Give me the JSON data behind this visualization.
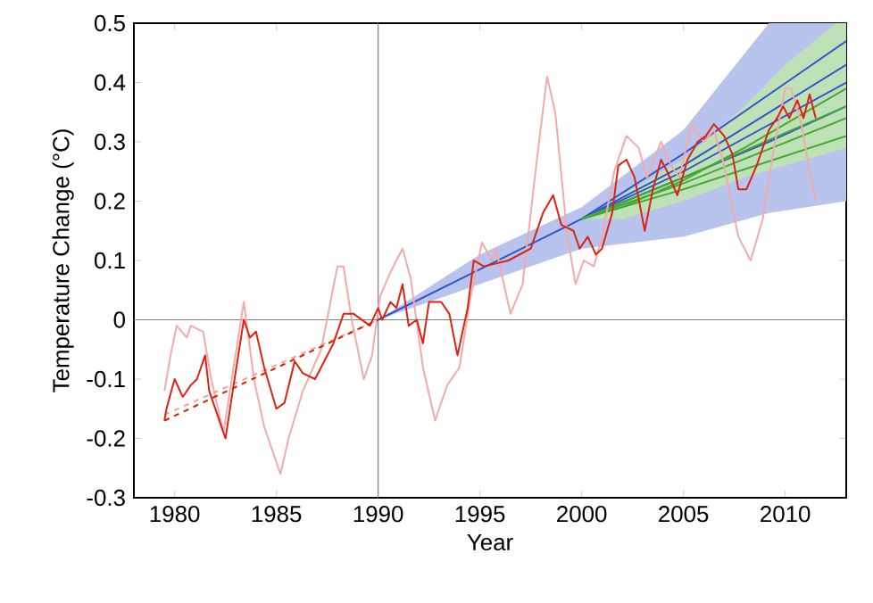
{
  "chart_data": {
    "type": "line",
    "xlabel": "Year",
    "ylabel": "Temperature Change (°C)",
    "xlim": [
      1978,
      2013
    ],
    "ylim": [
      -0.3,
      0.5
    ],
    "xticks": [
      1980,
      1985,
      1990,
      1995,
      2000,
      2005,
      2010
    ],
    "yticks": [
      -0.3,
      -0.2,
      -0.1,
      0,
      0.1,
      0.2,
      0.3,
      0.4,
      0.5
    ],
    "ref_lines": [
      {
        "axis": "x",
        "value": 1990,
        "color": "#808080"
      },
      {
        "axis": "y",
        "value": 0,
        "color": "#808080"
      }
    ],
    "series": [
      {
        "color": "#3355cc",
        "x": [
          1990,
          1995,
          2000,
          2005,
          2009.2,
          2013
        ],
        "values": [
          0,
          0.085,
          0.17,
          0.24,
          0.3,
          0.36
        ],
        "lower": [
          0,
          0.06,
          0.12,
          0.14,
          0.18,
          0.2
        ],
        "upper": [
          0,
          0.11,
          0.19,
          0.32,
          0.5,
          0.5
        ]
      },
      {
        "color": "#44aa33",
        "x": [
          2000,
          2002,
          2005,
          2008,
          2010,
          2012.5,
          2013
        ],
        "values": [
          0.17,
          0.19,
          0.235,
          0.29,
          0.33,
          0.38,
          0.39
        ],
        "lower": [
          0.17,
          0.17,
          0.2,
          0.24,
          0.26,
          0.285,
          0.29
        ],
        "upper": [
          0.17,
          0.21,
          0.27,
          0.36,
          0.43,
          0.5,
          0.5
        ]
      },
      {
        "color": "#3355cc",
        "x": [
          2000,
          2005,
          2013
        ],
        "values": [
          0.17,
          0.28,
          0.47
        ]
      },
      {
        "color": "#3355cc",
        "x": [
          2000,
          2005,
          2013
        ],
        "values": [
          0.17,
          0.26,
          0.43
        ]
      },
      {
        "color": "#3355cc",
        "x": [
          2000,
          2005,
          2013
        ],
        "values": [
          0.17,
          0.25,
          0.4
        ]
      },
      {
        "color": "#44aa33",
        "x": [
          2000,
          2005,
          2013
        ],
        "values": [
          0.17,
          0.23,
          0.34
        ]
      },
      {
        "color": "#44aa33",
        "x": [
          2000,
          2005,
          2013
        ],
        "values": [
          0.17,
          0.22,
          0.31
        ]
      },
      {
        "color": "#44aa33",
        "x": [
          2000,
          2005,
          2013
        ],
        "values": [
          0.17,
          0.24,
          0.36
        ]
      },
      {
        "color": "#f2aaaa",
        "x": [
          1979.5,
          1979.8,
          1980.1,
          1980.6,
          1980.8,
          1981.4,
          1981.8,
          1982.4,
          1982.9,
          1983.4,
          1983.9,
          1984.4,
          1985.2,
          1985.6,
          1986.3,
          1987.2,
          1988.0,
          1988.3,
          1988.7,
          1989.3,
          1989.7,
          1990.1,
          1990.6,
          1991.2,
          1991.6,
          1992.2,
          1992.8,
          1993.4,
          1994.0,
          1994.5,
          1995.1,
          1995.6,
          1995.8,
          1996.5,
          1997.1,
          1997.8,
          1998.3,
          1998.7,
          1999.3,
          1999.7,
          2000.1,
          2000.6,
          2001.0,
          2001.6,
          2002.2,
          2002.8,
          2003.2,
          2003.9,
          2004.4,
          2004.8,
          2005.4,
          2006.0,
          2006.5,
          2007.0,
          2007.7,
          2008.3,
          2008.9,
          2009.4,
          2010.0,
          2010.3,
          2010.8,
          2011.2,
          2011.5
        ],
        "values": [
          -0.12,
          -0.06,
          -0.01,
          -0.03,
          -0.01,
          -0.02,
          -0.1,
          -0.19,
          -0.08,
          0.03,
          -0.1,
          -0.18,
          -0.26,
          -0.2,
          -0.12,
          -0.05,
          0.09,
          0.09,
          0,
          -0.1,
          -0.06,
          0.04,
          0.08,
          0.12,
          0.07,
          -0.08,
          -0.17,
          -0.11,
          -0.08,
          0.03,
          0.13,
          0.1,
          0.12,
          0.01,
          0.06,
          0.27,
          0.41,
          0.35,
          0.14,
          0.06,
          0.1,
          0.09,
          0.14,
          0.25,
          0.31,
          0.29,
          0.24,
          0.3,
          0.26,
          0.24,
          0.33,
          0.3,
          0.32,
          0.26,
          0.14,
          0.1,
          0.17,
          0.28,
          0.39,
          0.39,
          0.33,
          0.25,
          0.2
        ]
      },
      {
        "color": "#f0a0a0",
        "line_style": "dashed",
        "x": [
          1979.5,
          1990
        ],
        "values": [
          -0.16,
          0
        ]
      },
      {
        "color": "#cc2200",
        "line_style": "dashed",
        "x": [
          1979.5,
          1990
        ],
        "values": [
          -0.17,
          0
        ]
      },
      {
        "color": "#dd2211",
        "x": [
          1979.5,
          1979.6,
          1980.0,
          1980.4,
          1980.8,
          1981.1,
          1981.5,
          1981.7,
          1982.1,
          1982.5,
          1982.9,
          1983.4,
          1983.7,
          1984.0,
          1984.4,
          1985.0,
          1985.4,
          1985.9,
          1986.3,
          1986.9,
          1987.2,
          1987.8,
          1988.3,
          1988.8,
          1989.6,
          1990.0,
          1990.2,
          1990.6,
          1990.9,
          1991.2,
          1991.5,
          1991.9,
          1992.2,
          1992.5,
          1993.1,
          1993.5,
          1993.9,
          1994.4,
          1994.7,
          1995.2,
          1996.4,
          1997.5,
          1998.1,
          1998.6,
          1999.0,
          1999.6,
          1999.9,
          2000.3,
          2000.7,
          2001.0,
          2001.5,
          2001.8,
          2002.2,
          2002.6,
          2003.1,
          2003.5,
          2003.9,
          2004.2,
          2004.7,
          2005.2,
          2005.7,
          2006.1,
          2006.5,
          2007.0,
          2007.4,
          2007.7,
          2008.1,
          2008.6,
          2009.2,
          2009.6,
          2009.9,
          2010.2,
          2010.6,
          2010.9,
          2011.2,
          2011.5
        ],
        "values": [
          -0.17,
          -0.15,
          -0.1,
          -0.13,
          -0.11,
          -0.1,
          -0.06,
          -0.12,
          -0.16,
          -0.2,
          -0.11,
          0,
          -0.03,
          -0.02,
          -0.08,
          -0.15,
          -0.14,
          -0.07,
          -0.09,
          -0.1,
          -0.08,
          -0.04,
          0.01,
          0.01,
          -0.01,
          0.02,
          0,
          0.03,
          0.02,
          0.06,
          -0.01,
          0,
          -0.04,
          0.03,
          0.03,
          0.01,
          -0.06,
          0.02,
          0.1,
          0.09,
          0.1,
          0.12,
          0.18,
          0.21,
          0.16,
          0.15,
          0.12,
          0.14,
          0.11,
          0.12,
          0.18,
          0.26,
          0.27,
          0.24,
          0.15,
          0.22,
          0.27,
          0.25,
          0.21,
          0.27,
          0.3,
          0.31,
          0.33,
          0.31,
          0.28,
          0.22,
          0.22,
          0.26,
          0.32,
          0.34,
          0.36,
          0.34,
          0.37,
          0.34,
          0.38,
          0.34
        ]
      }
    ]
  }
}
